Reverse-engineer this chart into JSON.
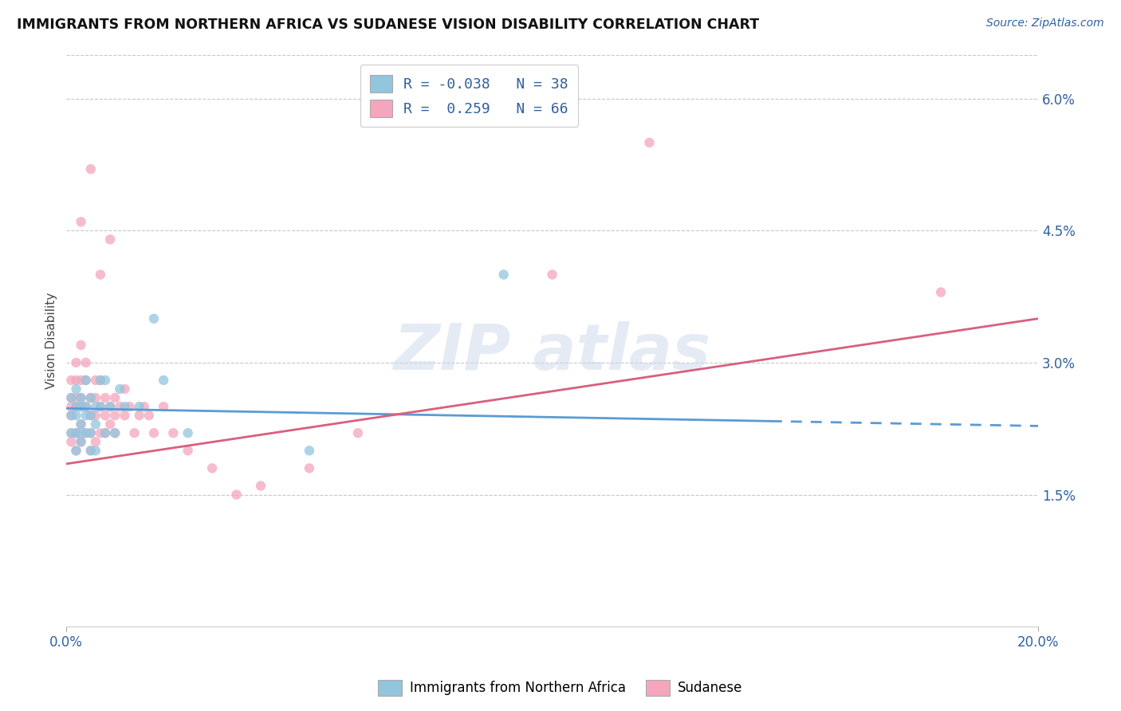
{
  "title": "IMMIGRANTS FROM NORTHERN AFRICA VS SUDANESE VISION DISABILITY CORRELATION CHART",
  "source": "Source: ZipAtlas.com",
  "ylabel": "Vision Disability",
  "x_min": 0.0,
  "x_max": 0.2,
  "y_min": 0.0,
  "y_max": 0.065,
  "y_ticks": [
    0.015,
    0.03,
    0.045,
    0.06
  ],
  "y_tick_labels": [
    "1.5%",
    "3.0%",
    "4.5%",
    "6.0%"
  ],
  "x_ticks": [
    0.0,
    0.2
  ],
  "x_tick_labels": [
    "0.0%",
    "20.0%"
  ],
  "blue_R": -0.038,
  "blue_N": 38,
  "pink_R": 0.259,
  "pink_N": 66,
  "blue_color": "#92c5de",
  "pink_color": "#f4a6bc",
  "blue_line_color": "#5b9bd5",
  "pink_line_color": "#d95f7f",
  "blue_line_y0": 0.0248,
  "blue_line_y1": 0.0228,
  "blue_line_solid_end": 0.145,
  "pink_line_y0": 0.0185,
  "pink_line_y1": 0.035,
  "blue_scatter_x": [
    0.001,
    0.001,
    0.001,
    0.002,
    0.002,
    0.002,
    0.002,
    0.002,
    0.003,
    0.003,
    0.003,
    0.003,
    0.003,
    0.004,
    0.004,
    0.004,
    0.004,
    0.005,
    0.005,
    0.005,
    0.005,
    0.006,
    0.006,
    0.006,
    0.007,
    0.007,
    0.008,
    0.008,
    0.009,
    0.01,
    0.011,
    0.012,
    0.015,
    0.018,
    0.02,
    0.025,
    0.05,
    0.09
  ],
  "blue_scatter_y": [
    0.024,
    0.022,
    0.026,
    0.025,
    0.022,
    0.024,
    0.02,
    0.027,
    0.023,
    0.025,
    0.021,
    0.026,
    0.022,
    0.024,
    0.028,
    0.022,
    0.025,
    0.026,
    0.022,
    0.02,
    0.024,
    0.025,
    0.023,
    0.02,
    0.028,
    0.025,
    0.022,
    0.028,
    0.025,
    0.022,
    0.027,
    0.025,
    0.025,
    0.035,
    0.028,
    0.022,
    0.02,
    0.04
  ],
  "pink_scatter_x": [
    0.001,
    0.001,
    0.001,
    0.001,
    0.001,
    0.001,
    0.002,
    0.002,
    0.002,
    0.002,
    0.002,
    0.002,
    0.002,
    0.003,
    0.003,
    0.003,
    0.003,
    0.003,
    0.003,
    0.004,
    0.004,
    0.004,
    0.004,
    0.005,
    0.005,
    0.005,
    0.005,
    0.006,
    0.006,
    0.006,
    0.006,
    0.007,
    0.007,
    0.007,
    0.008,
    0.008,
    0.008,
    0.009,
    0.009,
    0.01,
    0.01,
    0.01,
    0.011,
    0.012,
    0.012,
    0.013,
    0.014,
    0.015,
    0.016,
    0.017,
    0.018,
    0.02,
    0.022,
    0.025,
    0.03,
    0.035,
    0.04,
    0.05,
    0.06,
    0.1,
    0.12,
    0.18,
    0.003,
    0.005,
    0.007,
    0.009
  ],
  "pink_scatter_y": [
    0.026,
    0.024,
    0.022,
    0.028,
    0.025,
    0.021,
    0.03,
    0.028,
    0.025,
    0.022,
    0.02,
    0.026,
    0.022,
    0.028,
    0.026,
    0.023,
    0.021,
    0.025,
    0.032,
    0.03,
    0.028,
    0.025,
    0.022,
    0.026,
    0.024,
    0.022,
    0.02,
    0.028,
    0.026,
    0.024,
    0.021,
    0.028,
    0.025,
    0.022,
    0.026,
    0.024,
    0.022,
    0.025,
    0.023,
    0.026,
    0.024,
    0.022,
    0.025,
    0.027,
    0.024,
    0.025,
    0.022,
    0.024,
    0.025,
    0.024,
    0.022,
    0.025,
    0.022,
    0.02,
    0.018,
    0.015,
    0.016,
    0.018,
    0.022,
    0.04,
    0.055,
    0.038,
    0.046,
    0.052,
    0.04,
    0.044
  ]
}
